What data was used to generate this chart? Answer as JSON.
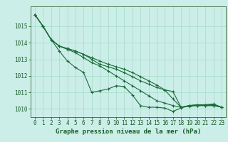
{
  "title": "Graphe pression niveau de la mer (hPa)",
  "background_color": "#cceee8",
  "grid_color": "#aaddcc",
  "line_color": "#1a6b3a",
  "marker_color": "#1a6b3a",
  "xlim": [
    -0.5,
    23.5
  ],
  "ylim": [
    1009.5,
    1016.2
  ],
  "yticks": [
    1010,
    1011,
    1012,
    1013,
    1014,
    1015
  ],
  "xticks": [
    0,
    1,
    2,
    3,
    4,
    5,
    6,
    7,
    8,
    9,
    10,
    11,
    12,
    13,
    14,
    15,
    16,
    17,
    18,
    19,
    20,
    21,
    22,
    23
  ],
  "series": [
    [
      1015.7,
      1015.0,
      1014.2,
      1013.5,
      1012.9,
      1012.5,
      1012.2,
      1011.0,
      1011.1,
      1011.2,
      1011.4,
      1011.35,
      1010.85,
      1010.2,
      1010.1,
      1010.1,
      1010.05,
      1009.85,
      1010.05,
      1010.2,
      1010.2,
      1010.2,
      1010.2,
      1010.1
    ],
    [
      1015.7,
      1015.0,
      1014.2,
      1013.8,
      1013.6,
      1013.4,
      1013.1,
      1012.8,
      1012.6,
      1012.3,
      1012.0,
      1011.7,
      1011.4,
      1011.1,
      1010.8,
      1010.5,
      1010.35,
      1010.2,
      1010.1,
      1010.15,
      1010.2,
      1010.2,
      1010.2,
      1010.1
    ],
    [
      1015.7,
      1015.0,
      1014.2,
      1013.8,
      1013.65,
      1013.5,
      1013.3,
      1013.1,
      1012.9,
      1012.7,
      1012.55,
      1012.4,
      1012.2,
      1011.95,
      1011.7,
      1011.45,
      1011.15,
      1010.6,
      1010.1,
      1010.2,
      1010.25,
      1010.25,
      1010.25,
      1010.1
    ],
    [
      1015.7,
      1015.0,
      1014.2,
      1013.8,
      1013.65,
      1013.5,
      1013.3,
      1013.0,
      1012.7,
      1012.55,
      1012.4,
      1012.2,
      1011.95,
      1011.7,
      1011.5,
      1011.3,
      1011.15,
      1011.05,
      1010.1,
      1010.2,
      1010.25,
      1010.25,
      1010.3,
      1010.1
    ]
  ],
  "tick_fontsize": 5.5,
  "xlabel_fontsize": 6.5,
  "tick_color": "#1a5c2a",
  "spine_color": "#336633"
}
